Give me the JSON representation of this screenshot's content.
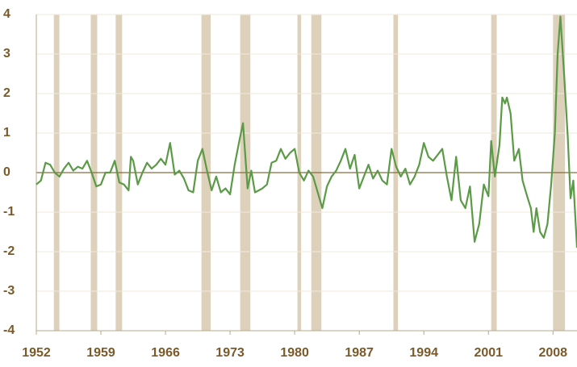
{
  "chart_data": {
    "type": "line",
    "x": [
      1952.0,
      1952.5,
      1953.0,
      1953.5,
      1954.0,
      1954.5,
      1955.0,
      1955.5,
      1956.0,
      1956.5,
      1957.0,
      1957.5,
      1958.0,
      1958.5,
      1959.0,
      1959.5,
      1960.0,
      1960.5,
      1961.0,
      1961.5,
      1962.0,
      1962.25,
      1962.5,
      1963.0,
      1963.5,
      1964.0,
      1964.5,
      1965.0,
      1965.5,
      1966.0,
      1966.5,
      1967.0,
      1967.5,
      1968.0,
      1968.5,
      1969.0,
      1969.5,
      1970.0,
      1970.5,
      1971.0,
      1971.5,
      1972.0,
      1972.5,
      1973.0,
      1973.5,
      1974.0,
      1974.4,
      1974.9,
      1975.3,
      1975.7,
      1976.5,
      1977.0,
      1977.5,
      1978.0,
      1978.5,
      1979.0,
      1979.5,
      1980.0,
      1980.5,
      1981.0,
      1981.5,
      1982.0,
      1982.5,
      1983.0,
      1983.5,
      1984.0,
      1984.5,
      1985.0,
      1985.5,
      1986.0,
      1986.5,
      1987.0,
      1987.5,
      1988.0,
      1988.5,
      1989.0,
      1989.5,
      1990.0,
      1990.5,
      1991.0,
      1991.5,
      1992.0,
      1992.5,
      1993.0,
      1993.5,
      1994.0,
      1994.5,
      1995.0,
      1995.5,
      1996.0,
      1996.5,
      1997.0,
      1997.5,
      1998.0,
      1998.5,
      1999.0,
      1999.5,
      2000.0,
      2000.5,
      2001.0,
      2001.3,
      2001.7,
      2002.2,
      2002.5,
      2002.8,
      2003.0,
      2003.4,
      2003.8,
      2004.3,
      2004.7,
      2005.2,
      2005.6,
      2005.9,
      2006.2,
      2006.6,
      2007.0,
      2007.4,
      2007.8,
      2008.2,
      2008.5,
      2008.8,
      2009.2,
      2009.6,
      2009.9,
      2010.2,
      2010.6
    ],
    "series": [
      {
        "color": "#5b9a46",
        "values": [
          -0.3,
          -0.2,
          0.25,
          0.2,
          0.0,
          -0.1,
          0.1,
          0.25,
          0.05,
          0.15,
          0.1,
          0.3,
          0.0,
          -0.35,
          -0.3,
          0.0,
          0.0,
          0.3,
          -0.25,
          -0.3,
          -0.45,
          0.4,
          0.3,
          -0.3,
          0.0,
          0.25,
          0.1,
          0.2,
          0.35,
          0.2,
          0.75,
          -0.05,
          0.05,
          -0.15,
          -0.45,
          -0.5,
          0.3,
          0.6,
          0.05,
          -0.45,
          -0.1,
          -0.5,
          -0.4,
          -0.55,
          0.2,
          0.8,
          1.25,
          -0.4,
          0.05,
          -0.5,
          -0.4,
          -0.3,
          0.25,
          0.3,
          0.6,
          0.35,
          0.5,
          0.6,
          0.0,
          -0.2,
          0.05,
          -0.1,
          -0.5,
          -0.9,
          -0.35,
          -0.1,
          0.05,
          0.3,
          0.6,
          0.1,
          0.45,
          -0.4,
          -0.1,
          0.2,
          -0.15,
          0.05,
          -0.2,
          -0.3,
          0.6,
          0.15,
          -0.1,
          0.1,
          -0.3,
          -0.1,
          0.2,
          0.75,
          0.4,
          0.3,
          0.45,
          0.6,
          -0.1,
          -0.7,
          0.4,
          -0.7,
          -0.9,
          -0.35,
          -1.75,
          -1.3,
          -0.3,
          -0.6,
          0.8,
          -0.1,
          0.7,
          1.9,
          1.75,
          1.9,
          1.5,
          0.3,
          0.6,
          -0.2,
          -0.6,
          -0.9,
          -1.5,
          -0.9,
          -1.5,
          -1.65,
          -1.3,
          -0.3,
          1.0,
          3.0,
          3.95,
          2.5,
          0.9,
          -0.65,
          -0.2,
          -1.9
        ]
      }
    ],
    "recessions": [
      [
        1953.9,
        1954.5
      ],
      [
        1957.9,
        1958.6
      ],
      [
        1960.6,
        1961.3
      ],
      [
        1969.9,
        1970.9
      ],
      [
        1974.1,
        1975.2
      ],
      [
        1980.3,
        1980.7
      ],
      [
        1981.8,
        1982.9
      ],
      [
        1990.7,
        1991.2
      ],
      [
        2001.3,
        2001.9
      ],
      [
        2008.0,
        2009.3
      ]
    ],
    "xlim": [
      1952,
      2010.6
    ],
    "xticks": [
      1952,
      1959,
      1966,
      1973,
      1980,
      1987,
      1994,
      2001,
      2008
    ],
    "ylim": [
      -4,
      4
    ],
    "yticks": [
      -4,
      -3,
      -2,
      -1,
      0,
      1,
      2,
      3,
      4
    ],
    "grid": true
  }
}
